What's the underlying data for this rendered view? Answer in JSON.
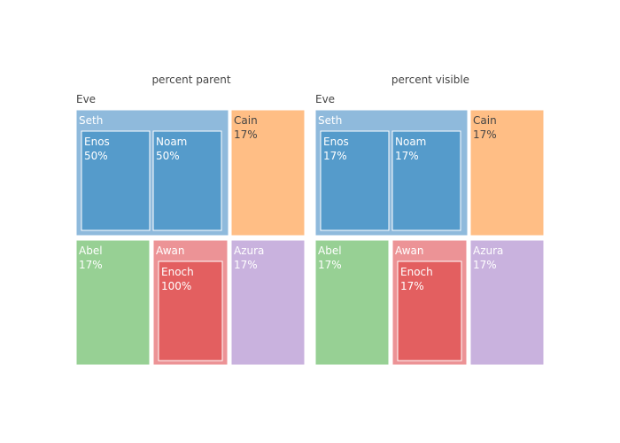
{
  "chart_data": [
    {
      "type": "treemap",
      "title": "percent parent",
      "root": "Eve",
      "nodes": [
        {
          "label": "Seth",
          "parent": "Eve",
          "text": "",
          "color": "#8fbadc",
          "text_color": "#ffffff"
        },
        {
          "label": "Enos",
          "parent": "Seth",
          "text": "50%",
          "color": "#559bcb",
          "text_color": "#ffffff"
        },
        {
          "label": "Noam",
          "parent": "Seth",
          "text": "50%",
          "color": "#559bcb",
          "text_color": "#ffffff"
        },
        {
          "label": "Cain",
          "parent": "Eve",
          "text": "17%",
          "color": "#ffbe85",
          "text_color": "#444444"
        },
        {
          "label": "Abel",
          "parent": "Eve",
          "text": "17%",
          "color": "#97d094",
          "text_color": "#ffffff"
        },
        {
          "label": "Awan",
          "parent": "Eve",
          "text": "",
          "color": "#ec9396",
          "text_color": "#ffffff"
        },
        {
          "label": "Enoch",
          "parent": "Awan",
          "text": "100%",
          "color": "#e35f60",
          "text_color": "#ffffff"
        },
        {
          "label": "Azura",
          "parent": "Eve",
          "text": "17%",
          "color": "#c9b2de",
          "text_color": "#ffffff"
        }
      ]
    },
    {
      "type": "treemap",
      "title": "percent visible",
      "root": "Eve",
      "nodes": [
        {
          "label": "Seth",
          "parent": "Eve",
          "text": "",
          "color": "#8fbadc",
          "text_color": "#ffffff"
        },
        {
          "label": "Enos",
          "parent": "Seth",
          "text": "17%",
          "color": "#559bcb",
          "text_color": "#ffffff"
        },
        {
          "label": "Noam",
          "parent": "Seth",
          "text": "17%",
          "color": "#559bcb",
          "text_color": "#ffffff"
        },
        {
          "label": "Cain",
          "parent": "Eve",
          "text": "17%",
          "color": "#ffbe85",
          "text_color": "#444444"
        },
        {
          "label": "Abel",
          "parent": "Eve",
          "text": "17%",
          "color": "#97d094",
          "text_color": "#ffffff"
        },
        {
          "label": "Awan",
          "parent": "Eve",
          "text": "",
          "color": "#ec9396",
          "text_color": "#ffffff"
        },
        {
          "label": "Enoch",
          "parent": "Awan",
          "text": "17%",
          "color": "#e35f60",
          "text_color": "#ffffff"
        },
        {
          "label": "Azura",
          "parent": "Eve",
          "text": "17%",
          "color": "#c9b2de",
          "text_color": "#ffffff"
        }
      ]
    }
  ]
}
